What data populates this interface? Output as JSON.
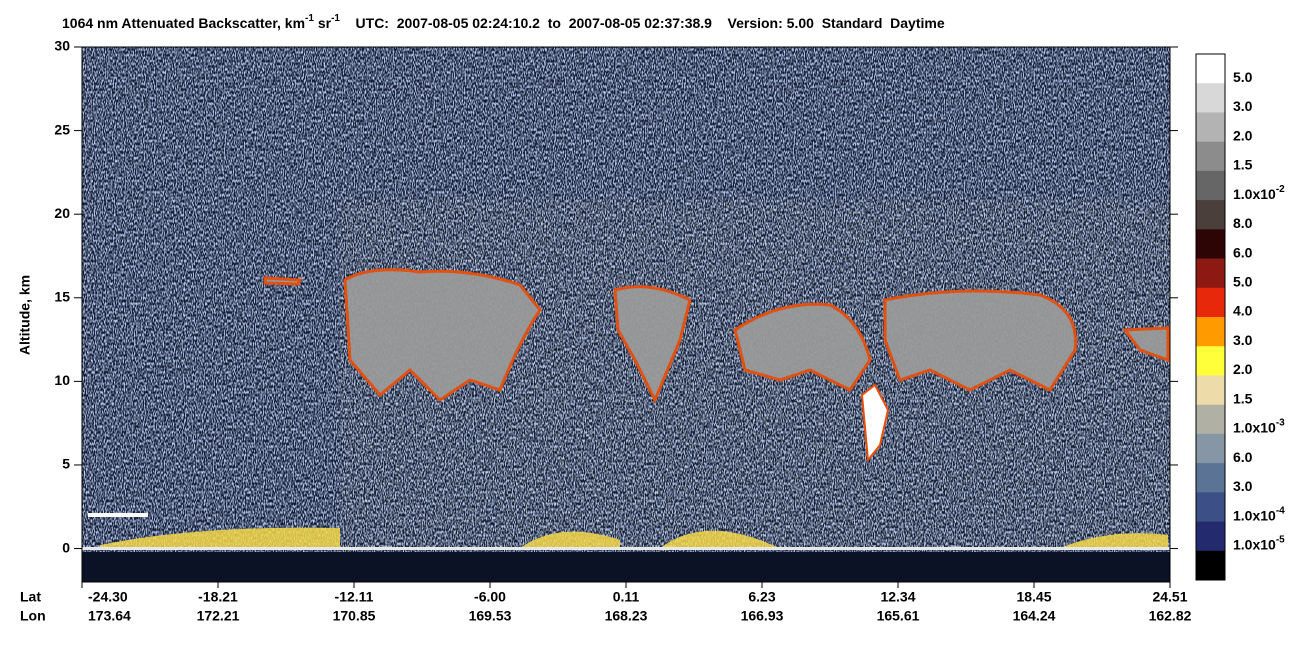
{
  "chart_data": {
    "type": "heatmap",
    "title": {
      "product": "1064 nm Attenuated Backscatter, km",
      "unit_exp": "-1",
      "unit2": " sr",
      "unit2_exp": "-1",
      "utc": "UTC:  2007-08-05 02:24:10.2  to  2007-08-05 02:37:38.9",
      "version": "Version: 5.00  Standard  Daytime"
    },
    "y_label": "Altitude, km",
    "ylim": [
      -2,
      30
    ],
    "yticks": [
      0,
      5,
      10,
      15,
      20,
      25,
      30
    ],
    "x_row_labels": [
      "Lat",
      "Lon"
    ],
    "lat": [
      "-24.30",
      "-18.21",
      "-12.11",
      "-6.00",
      "0.11",
      "6.23",
      "12.34",
      "18.45",
      "24.51"
    ],
    "lon": [
      "173.64",
      "172.21",
      "170.85",
      "169.53",
      "168.23",
      "166.93",
      "165.61",
      "164.24",
      "162.82"
    ],
    "colorbar": {
      "colors": [
        "#ffffff",
        "#d8d8d8",
        "#b3b3b3",
        "#8c8c8c",
        "#666666",
        "#4a3f3b",
        "#2d0505",
        "#8c1a12",
        "#e8280a",
        "#ff9a00",
        "#ffff3a",
        "#eddcaa",
        "#b0b0a4",
        "#8696a4",
        "#5b7394",
        "#3c4f86",
        "#232a6e",
        "#000000"
      ],
      "labels": [
        {
          "text": "5.0"
        },
        {
          "text": "3.0"
        },
        {
          "text": "2.0"
        },
        {
          "text": "1.5"
        },
        {
          "text": "1.0x10",
          "exp": "-2"
        },
        {
          "text": "8.0"
        },
        {
          "text": "6.0"
        },
        {
          "text": "5.0"
        },
        {
          "text": "4.0"
        },
        {
          "text": "3.0"
        },
        {
          "text": "2.0"
        },
        {
          "text": "1.5"
        },
        {
          "text": "1.0x10",
          "exp": "-3"
        },
        {
          "text": "6.0"
        },
        {
          "text": "3.0"
        },
        {
          "text": "1.0x10",
          "exp": "-4"
        },
        {
          "text": "1.0x10",
          "exp": "-5"
        }
      ]
    }
  }
}
